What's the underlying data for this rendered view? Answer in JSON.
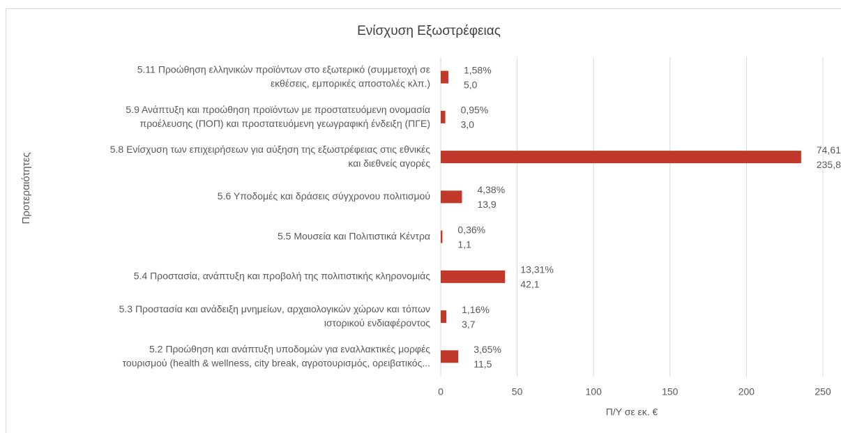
{
  "chart_data": {
    "type": "barh",
    "title": "Ενίσχυση Εξωστρέφειας",
    "y_label": "Προτεραιότητες",
    "x_label": "Π/Υ σε εκ. €",
    "categories": [
      "5.11 Προώθηση ελληνικών προϊόντων στο εξωτερικό (συμμετοχή σε\nεκθέσεις, εμπορικές αποστολές κλπ.)",
      "5.9 Ανάπτυξη και προώθηση προϊόντων με προστατευόμενη ονομασία\nπροέλευσης (ΠΟΠ) και προστατευόμενη γεωγραφική ένδειξη (ΠΓΕ)",
      "5.8 Ενίσχυση των επιχειρήσεων για αύξηση της εξωστρέφειας στις εθνικές\nκαι διεθνείς αγορές",
      "5.6 Υποδομές και δράσεις σύγχρονου πολιτισμού",
      "5.5 Μουσεία και Πολιτιστικά Κέντρα",
      "5.4 Προστασία, ανάπτυξη και προβολή της πολιτιστικής κληρονομιάς",
      "5.3 Προστασία και ανάδειξη μνημείων, αρχαιολογικών χώρων και τόπων\nιστορικού ενδιαφέροντος",
      "5.2 Προώθηση και ανάπτυξη υποδομών για εναλλακτικές μορφές\nτουρισμού (health & wellness, city break, αγροτουρισμός, ορειβατικός..."
    ],
    "values": [
      5.0,
      3.0,
      235.8,
      13.9,
      1.1,
      42.1,
      3.7,
      11.5
    ],
    "value_labels": [
      "5,0",
      "3,0",
      "235,8",
      "13,9",
      "1,1",
      "42,1",
      "3,7",
      "11,5"
    ],
    "share_labels": [
      "1,58%",
      "0,95%",
      "74,61%",
      "4,38%",
      "0,36%",
      "13,31%",
      "1,16%",
      "3,65%"
    ],
    "color": "#c0392b",
    "xlim": [
      0,
      250
    ],
    "xticks": [
      0,
      50,
      100,
      150,
      200,
      250
    ],
    "grid": true
  }
}
